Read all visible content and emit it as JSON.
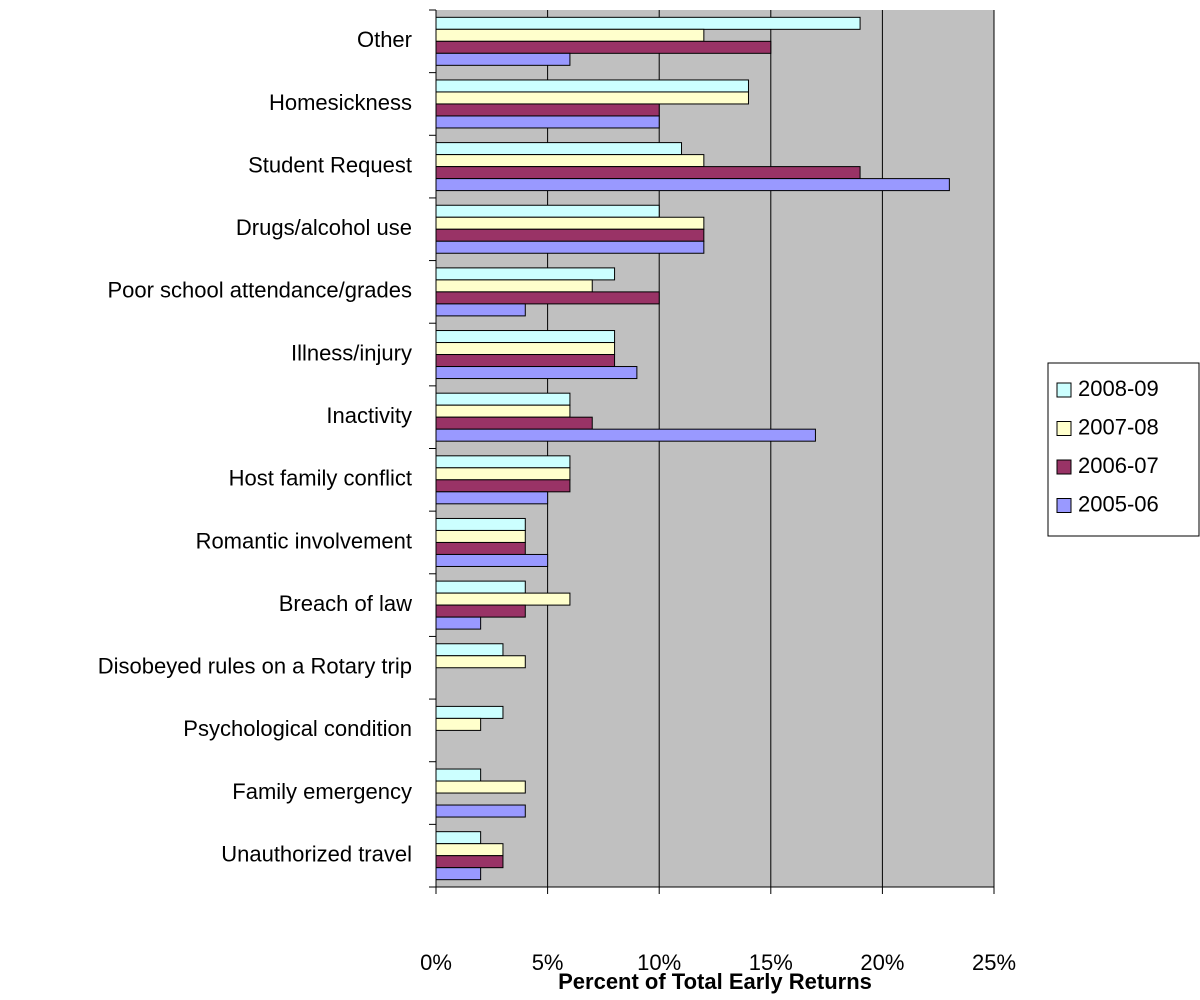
{
  "chart_data": {
    "type": "bar",
    "orientation": "horizontal",
    "x_label": "Percent of Total Early Returns",
    "categories": [
      "Other",
      "Homesickness",
      "Student Request",
      "Drugs/alcohol use",
      "Poor school attendance/grades",
      "Illness/injury",
      "Inactivity",
      "Host family conflict",
      "Romantic involvement",
      "Breach of law",
      "Disobeyed rules on a Rotary trip",
      "Psychological condition",
      "Family emergency",
      "Unauthorized travel"
    ],
    "series": [
      {
        "name": "2008-09",
        "color": "#ccffff",
        "values": [
          19,
          14,
          11,
          10,
          8,
          8,
          6,
          6,
          4,
          4,
          3,
          3,
          2,
          2
        ]
      },
      {
        "name": "2007-08",
        "color": "#ffffcc",
        "values": [
          12,
          14,
          12,
          12,
          7,
          8,
          6,
          6,
          4,
          6,
          4,
          2,
          4,
          3
        ]
      },
      {
        "name": "2006-07",
        "color": "#993366",
        "values": [
          15,
          10,
          19,
          12,
          10,
          8,
          7,
          6,
          4,
          4,
          null,
          null,
          null,
          3
        ]
      },
      {
        "name": "2005-06",
        "color": "#9999ff",
        "values": [
          6,
          10,
          23,
          12,
          4,
          9,
          17,
          5,
          5,
          2,
          null,
          null,
          4,
          2
        ]
      }
    ],
    "xlim": [
      0,
      25
    ],
    "xticks": [
      {
        "value": 0,
        "label": "0%"
      },
      {
        "value": 5,
        "label": "5%"
      },
      {
        "value": 10,
        "label": "10%"
      },
      {
        "value": 15,
        "label": "15%"
      },
      {
        "value": 20,
        "label": "20%"
      },
      {
        "value": 25,
        "label": "25%"
      }
    ],
    "grid": true,
    "plot_background": "#c0c0c0",
    "legend": "right"
  }
}
